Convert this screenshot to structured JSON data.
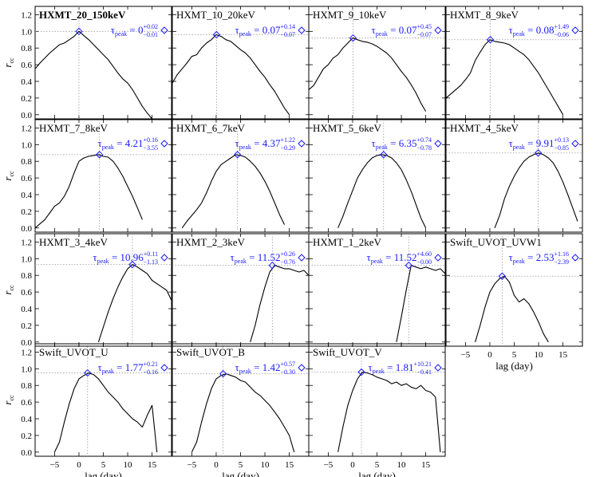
{
  "chart_data": {
    "type": "line",
    "xlabel": "lag (day)",
    "ylabel": "r",
    "ylabel_sub": "cc",
    "xlim": [
      -9,
      19
    ],
    "ylim": [
      -0.05,
      1.3
    ],
    "xticks": [
      -5,
      0,
      5,
      10,
      15
    ],
    "yticks": [
      0.0,
      0.2,
      0.4,
      0.6,
      0.8,
      1.0,
      1.2
    ],
    "ytick_labels": [
      "0.0",
      "0.2",
      "0.4",
      "0.6",
      "0.8",
      "1.0",
      "1.2"
    ],
    "grid": "dotted reference lines at peak lag and peak r",
    "line_color": "#000000",
    "marker_color": "#1a1aff",
    "panels": [
      {
        "name": "HXMT_20_150keV",
        "bold": true,
        "tau": "0",
        "tau_plus": "+0.02",
        "tau_minus": "−0.01",
        "peak_x": 0.0,
        "peak_y": 1.0,
        "x": [
          -9,
          -8,
          -7,
          -6,
          -5,
          -4,
          -3,
          -2,
          -1,
          0,
          1,
          2,
          3,
          4,
          5,
          6,
          7,
          8,
          9,
          10,
          11,
          12,
          13,
          14,
          15,
          16
        ],
        "y": [
          0.55,
          0.62,
          0.68,
          0.74,
          0.79,
          0.84,
          0.86,
          0.9,
          0.94,
          1.0,
          0.95,
          0.9,
          0.84,
          0.78,
          0.72,
          0.66,
          0.58,
          0.5,
          0.43,
          0.38,
          0.3,
          0.2,
          0.1,
          0.02,
          -0.05,
          null
        ]
      },
      {
        "name": "HXMT_10_20keV",
        "bold": false,
        "tau": "0.07",
        "tau_plus": "+0.14",
        "tau_minus": "−0.07",
        "peak_x": 0.07,
        "peak_y": 0.96,
        "x": [
          -9,
          -8,
          -7,
          -6,
          -5,
          -4,
          -3,
          -2,
          -1,
          0,
          1,
          2,
          3,
          4,
          5,
          6,
          7,
          8,
          9,
          10,
          11,
          12,
          13,
          14,
          15,
          16
        ],
        "y": [
          0.38,
          0.48,
          0.55,
          0.62,
          0.7,
          0.72,
          0.8,
          0.86,
          0.9,
          0.96,
          0.94,
          0.9,
          0.88,
          0.83,
          0.78,
          0.74,
          0.68,
          0.6,
          0.52,
          0.45,
          0.36,
          0.28,
          0.18,
          0.08,
          0.0,
          null
        ]
      },
      {
        "name": "HXMT_9_10keV",
        "bold": false,
        "tau": "0.07",
        "tau_plus": "+0.45",
        "tau_minus": "−0.07",
        "peak_x": 0.07,
        "peak_y": 0.92,
        "x": [
          -9,
          -8,
          -7,
          -6,
          -5,
          -4,
          -3,
          -2,
          -1,
          0,
          1,
          2,
          3,
          4,
          5,
          6,
          7,
          8,
          9,
          10,
          11,
          12,
          13,
          14,
          15,
          16
        ],
        "y": [
          0.3,
          0.35,
          0.45,
          0.55,
          0.6,
          0.68,
          0.72,
          0.8,
          0.86,
          0.92,
          0.9,
          0.88,
          0.87,
          0.85,
          0.82,
          0.78,
          0.74,
          0.68,
          0.6,
          0.52,
          0.45,
          0.36,
          0.26,
          0.14,
          0.04,
          null
        ]
      },
      {
        "name": "HXMT_8_9keV",
        "bold": false,
        "tau": "0.08",
        "tau_plus": "+1.49",
        "tau_minus": "−0.06",
        "peak_x": 0.08,
        "peak_y": 0.9,
        "x": [
          -9,
          -8,
          -7,
          -6,
          -5,
          -4,
          -3,
          -2,
          -1,
          0,
          1,
          2,
          3,
          4,
          5,
          6,
          7,
          8,
          9,
          10,
          11,
          12,
          13,
          14,
          15,
          16
        ],
        "y": [
          0.2,
          0.25,
          0.3,
          0.35,
          0.42,
          0.5,
          0.65,
          0.75,
          0.84,
          0.9,
          0.88,
          0.87,
          0.86,
          0.84,
          0.8,
          0.76,
          0.72,
          0.66,
          0.58,
          0.5,
          0.4,
          0.3,
          0.2,
          0.1,
          0.0,
          null
        ]
      },
      {
        "name": "HXMT_7_8keV",
        "bold": false,
        "tau": "4.21",
        "tau_plus": "+0.16",
        "tau_minus": "−3.55",
        "peak_x": 4.21,
        "peak_y": 0.88,
        "x": [
          -9,
          -8,
          -7,
          -6,
          -5,
          -4,
          -3,
          -2,
          -1,
          0,
          1,
          2,
          3,
          4,
          5,
          6,
          7,
          8,
          9,
          10,
          11,
          12,
          13,
          14,
          15,
          16
        ],
        "y": [
          0.0,
          0.05,
          0.1,
          0.18,
          0.26,
          0.3,
          0.38,
          0.5,
          0.66,
          0.8,
          0.84,
          0.86,
          0.87,
          0.88,
          0.86,
          0.85,
          0.8,
          0.72,
          0.62,
          0.5,
          0.38,
          0.24,
          0.1,
          null,
          null,
          null
        ]
      },
      {
        "name": "HXMT_6_7keV",
        "bold": false,
        "tau": "4.37",
        "tau_plus": "+1.22",
        "tau_minus": "−0.29",
        "peak_x": 4.37,
        "peak_y": 0.88,
        "x": [
          -9,
          -8,
          -7,
          -6,
          -5,
          -4,
          -3,
          -2,
          -1,
          0,
          1,
          2,
          3,
          4,
          5,
          6,
          7,
          8,
          9,
          10,
          11,
          12,
          13,
          14,
          15,
          16
        ],
        "y": [
          null,
          null,
          0.0,
          0.08,
          0.15,
          0.22,
          0.3,
          0.42,
          0.56,
          0.68,
          0.76,
          0.8,
          0.84,
          0.88,
          0.87,
          0.85,
          0.8,
          0.74,
          0.66,
          0.56,
          0.44,
          0.3,
          0.16,
          0.04,
          null,
          null
        ]
      },
      {
        "name": "HXMT_5_6keV",
        "bold": false,
        "tau": "6.35",
        "tau_plus": "+0.74",
        "tau_minus": "−0.78",
        "peak_x": 6.35,
        "peak_y": 0.88,
        "x": [
          -9,
          -8,
          -7,
          -6,
          -5,
          -4,
          -3,
          -2,
          -1,
          0,
          1,
          2,
          3,
          4,
          5,
          6,
          7,
          8,
          9,
          10,
          11,
          12,
          13,
          14,
          15,
          16
        ],
        "y": [
          null,
          null,
          null,
          null,
          null,
          null,
          0.0,
          0.14,
          0.3,
          0.45,
          0.6,
          0.7,
          0.78,
          0.84,
          0.87,
          0.88,
          0.87,
          0.84,
          0.78,
          0.7,
          0.58,
          0.44,
          0.28,
          0.12,
          0.0,
          null
        ]
      },
      {
        "name": "HXMT_4_5keV",
        "bold": false,
        "tau": "9.91",
        "tau_plus": "+0.13",
        "tau_minus": "−0.85",
        "peak_x": 9.91,
        "peak_y": 0.9,
        "x": [
          -9,
          -8,
          -7,
          -6,
          -5,
          -4,
          -3,
          -2,
          -1,
          0,
          1,
          2,
          3,
          4,
          5,
          6,
          7,
          8,
          9,
          10,
          11,
          12,
          13,
          14,
          15,
          16,
          17,
          18
        ],
        "y": [
          null,
          null,
          null,
          null,
          null,
          null,
          null,
          null,
          null,
          null,
          0.0,
          0.15,
          0.35,
          0.5,
          0.62,
          0.72,
          0.8,
          0.85,
          0.88,
          0.9,
          0.88,
          0.84,
          0.78,
          0.68,
          0.55,
          0.4,
          0.24,
          0.08
        ]
      },
      {
        "name": "HXMT_3_4keV",
        "bold": false,
        "tau": "10.96",
        "tau_plus": "+0.11",
        "tau_minus": "−1.13",
        "peak_x": 10.96,
        "peak_y": 0.93,
        "x": [
          -9,
          -8,
          -7,
          -6,
          -5,
          -4,
          -3,
          -2,
          -1,
          0,
          1,
          2,
          3,
          4,
          5,
          6,
          7,
          8,
          9,
          10,
          11,
          12,
          13,
          14,
          15,
          16,
          17,
          18,
          19
        ],
        "y": [
          null,
          null,
          null,
          null,
          null,
          null,
          null,
          null,
          null,
          null,
          null,
          null,
          null,
          0.0,
          0.18,
          0.36,
          0.52,
          0.66,
          0.78,
          0.88,
          0.93,
          0.9,
          0.86,
          0.82,
          0.74,
          0.7,
          0.66,
          0.62,
          0.5
        ]
      },
      {
        "name": "HXMT_2_3keV",
        "bold": false,
        "tau": "11.52",
        "tau_plus": "+0.26",
        "tau_minus": "−0.76",
        "peak_x": 11.52,
        "peak_y": 0.92,
        "x": [
          -9,
          -8,
          -7,
          -6,
          -5,
          -4,
          -3,
          -2,
          -1,
          0,
          1,
          2,
          3,
          4,
          5,
          6,
          7,
          8,
          9,
          10,
          11,
          12,
          13,
          14,
          15,
          16,
          17,
          18,
          19
        ],
        "y": [
          null,
          null,
          null,
          null,
          null,
          null,
          null,
          null,
          null,
          null,
          null,
          null,
          null,
          null,
          null,
          null,
          0.0,
          0.2,
          0.45,
          0.66,
          0.84,
          0.92,
          0.9,
          0.88,
          0.88,
          0.86,
          0.84,
          0.86,
          0.8
        ]
      },
      {
        "name": "HXMT_1_2keV",
        "bold": false,
        "tau": "11.52",
        "tau_plus": "+4.60",
        "tau_minus": "−0.00",
        "peak_x": 11.52,
        "peak_y": 0.92,
        "x": [
          -9,
          -8,
          -7,
          -6,
          -5,
          -4,
          -3,
          -2,
          -1,
          0,
          1,
          2,
          3,
          4,
          5,
          6,
          7,
          8,
          9,
          10,
          11,
          12,
          13,
          14,
          15,
          16,
          17,
          18,
          19
        ],
        "y": [
          null,
          null,
          null,
          null,
          null,
          null,
          null,
          null,
          null,
          null,
          null,
          null,
          null,
          null,
          null,
          null,
          null,
          null,
          0.0,
          0.3,
          0.62,
          0.92,
          0.9,
          0.88,
          0.9,
          0.88,
          0.86,
          0.88,
          0.82
        ]
      },
      {
        "name": "Swift_UVOT_UVW1",
        "bold": false,
        "tau": "2.53",
        "tau_plus": "+1.16",
        "tau_minus": "−2.39",
        "peak_x": 2.53,
        "peak_y": 0.79,
        "x": [
          -9,
          -8,
          -7,
          -6,
          -5,
          -4,
          -3,
          -2,
          -1,
          0,
          1,
          2,
          3,
          4,
          5,
          6,
          7,
          8,
          9,
          10,
          11,
          12,
          13,
          14,
          15,
          16,
          17,
          18,
          19
        ],
        "y": [
          null,
          null,
          null,
          null,
          null,
          null,
          0.0,
          0.2,
          0.42,
          0.6,
          0.7,
          0.76,
          0.79,
          0.72,
          0.56,
          0.48,
          0.52,
          0.46,
          0.36,
          0.24,
          0.1,
          0.0,
          null,
          null,
          null,
          null,
          null,
          null,
          0.1
        ]
      },
      {
        "name": "Swift_UVOT_U",
        "bold": false,
        "tau": "1.77",
        "tau_plus": "+0.21",
        "tau_minus": "−0.16",
        "peak_x": 1.77,
        "peak_y": 0.95,
        "x": [
          -9,
          -8,
          -7,
          -6,
          -5,
          -4,
          -3,
          -2,
          -1,
          0,
          1,
          2,
          3,
          4,
          5,
          6,
          7,
          8,
          9,
          10,
          11,
          12,
          13,
          14,
          15,
          16
        ],
        "y": [
          null,
          null,
          null,
          null,
          0.0,
          0.12,
          0.36,
          0.58,
          0.76,
          0.88,
          0.92,
          0.95,
          0.93,
          0.88,
          0.8,
          0.72,
          0.66,
          0.6,
          0.52,
          0.46,
          0.4,
          0.36,
          0.3,
          0.44,
          0.56,
          0.0
        ]
      },
      {
        "name": "Swift_UVOT_B",
        "bold": false,
        "tau": "1.42",
        "tau_plus": "+0.57",
        "tau_minus": "−0.30",
        "peak_x": 1.42,
        "peak_y": 0.94,
        "x": [
          -9,
          -8,
          -7,
          -6,
          -5,
          -4,
          -3,
          -2,
          -1,
          0,
          1,
          2,
          3,
          4,
          5,
          6,
          7,
          8,
          9,
          10,
          11,
          12,
          13,
          14,
          15,
          16
        ],
        "y": [
          null,
          null,
          null,
          null,
          0.0,
          0.12,
          0.36,
          0.58,
          0.76,
          0.88,
          0.92,
          0.94,
          0.92,
          0.9,
          0.86,
          0.84,
          0.78,
          0.72,
          0.68,
          0.62,
          0.56,
          0.48,
          0.4,
          0.3,
          0.2,
          0.0
        ]
      },
      {
        "name": "Swift_UVOT_V",
        "bold": false,
        "tau": "1.81",
        "tau_plus": "+10.21",
        "tau_minus": "−0.41",
        "peak_x": 1.81,
        "peak_y": 0.96,
        "x": [
          -9,
          -8,
          -7,
          -6,
          -5,
          -4,
          -3,
          -2,
          -1,
          0,
          1,
          2,
          3,
          4,
          5,
          6,
          7,
          8,
          9,
          10,
          11,
          12,
          13,
          14,
          15,
          16,
          17,
          18
        ],
        "y": [
          null,
          null,
          null,
          null,
          null,
          null,
          0.0,
          0.3,
          0.56,
          0.74,
          0.88,
          0.96,
          0.95,
          0.93,
          0.9,
          0.88,
          0.86,
          0.82,
          0.84,
          0.8,
          0.82,
          0.78,
          0.76,
          0.8,
          0.74,
          0.72,
          0.66,
          0.0
        ]
      }
    ]
  }
}
